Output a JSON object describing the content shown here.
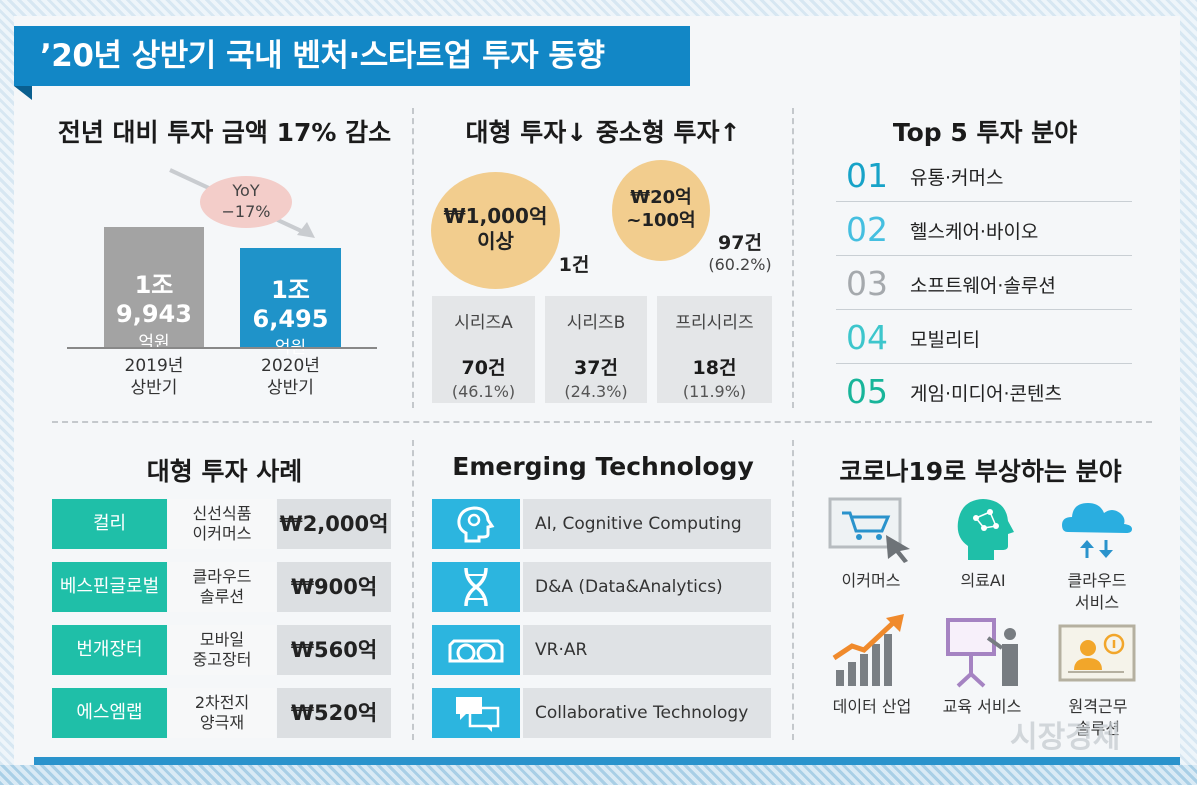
{
  "title": "’20년 상반기 국내 벤처·스타트업 투자 동향",
  "colors": {
    "accent": "#1287c6",
    "teal": "#1fbfa8",
    "cyan": "#2cb5df",
    "circle": "#f2cd8e",
    "bar_gray": "#a3a3a3",
    "bar_blue": "#1f93c9",
    "yoy_pill": "#f3cdc9"
  },
  "sec1": {
    "heading": "전년 대비 투자 금액 17% 감소",
    "yoy_line1": "YoY",
    "yoy_line2": "−17%",
    "chart_data": {
      "type": "bar",
      "title": "전년 대비 투자 금액 17% 감소",
      "categories": [
        "2019년 상반기",
        "2020년 상반기"
      ],
      "values": [
        19943,
        16495
      ],
      "unit": "억원"
    },
    "bar1_value": "1조 9,943",
    "bar1_unit": "억원",
    "bar2_value": "1조 6,495",
    "bar2_unit": "억원",
    "year1_l1": "2019년",
    "year1_l2": "상반기",
    "year2_l1": "2020년",
    "year2_l2": "상반기"
  },
  "sec2": {
    "heading": "대형 투자↓ 중소형 투자↑",
    "big_l1": "₩1,000억",
    "big_l2": "이상",
    "big_count": "1건",
    "mid_l1": "₩20억",
    "mid_l2": "~100억",
    "mid_count": "97건",
    "mid_pct": "(60.2%)",
    "series": [
      {
        "name": "시리즈A",
        "count": "70건",
        "pct": "(46.1%)"
      },
      {
        "name": "시리즈B",
        "count": "37건",
        "pct": "(24.3%)"
      },
      {
        "name": "프리시리즈",
        "count": "18건",
        "pct": "(11.9%)"
      }
    ]
  },
  "sec3": {
    "heading": "Top 5 투자 분야",
    "items": [
      {
        "num": "01",
        "label": "유통·커머스",
        "color": "#17a3c8"
      },
      {
        "num": "02",
        "label": "헬스케어·바이오",
        "color": "#45bfe0"
      },
      {
        "num": "03",
        "label": "소프트웨어·솔루션",
        "color": "#a5a9ad"
      },
      {
        "num": "04",
        "label": "모빌리티",
        "color": "#3dc6cc"
      },
      {
        "num": "05",
        "label": "게임·미디어·콘텐츠",
        "color": "#18b59a"
      }
    ]
  },
  "sec4": {
    "heading": "대형 투자 사례",
    "cases": [
      {
        "name": "컬리",
        "sector_l1": "신선식품",
        "sector_l2": "이커머스",
        "amount": "₩2,000억"
      },
      {
        "name": "베스핀글로벌",
        "sector_l1": "클라우드",
        "sector_l2": "솔루션",
        "amount": "₩900억"
      },
      {
        "name": "번개장터",
        "sector_l1": "모바일",
        "sector_l2": "중고장터",
        "amount": "₩560억"
      },
      {
        "name": "에스엠랩",
        "sector_l1": "2차전지",
        "sector_l2": "양극재",
        "amount": "₩520억"
      }
    ]
  },
  "sec5": {
    "heading": "Emerging Technology",
    "items": [
      {
        "icon": "brain-gear-icon",
        "label": "AI, Cognitive Computing"
      },
      {
        "icon": "dna-icon",
        "label": "D&A (Data&Analytics)"
      },
      {
        "icon": "vr-goggles-icon",
        "label": "VR·AR"
      },
      {
        "icon": "chat-bubbles-icon",
        "label": "Collaborative Technology"
      }
    ]
  },
  "sec6": {
    "heading": "코로나19로 부상하는 분야",
    "items": [
      {
        "icon": "shopping-cart-icon",
        "l1": "이커머스",
        "l2": ""
      },
      {
        "icon": "ai-head-icon",
        "l1": "의료AI",
        "l2": ""
      },
      {
        "icon": "cloud-icon",
        "l1": "클라우드",
        "l2": "서비스"
      },
      {
        "icon": "growth-chart-icon",
        "l1": "데이터 산업",
        "l2": ""
      },
      {
        "icon": "presentation-board-icon",
        "l1": "교육 서비스",
        "l2": ""
      },
      {
        "icon": "remote-work-icon",
        "l1": "원격근무",
        "l2": "솔루션"
      }
    ]
  },
  "watermark": "시장경제"
}
